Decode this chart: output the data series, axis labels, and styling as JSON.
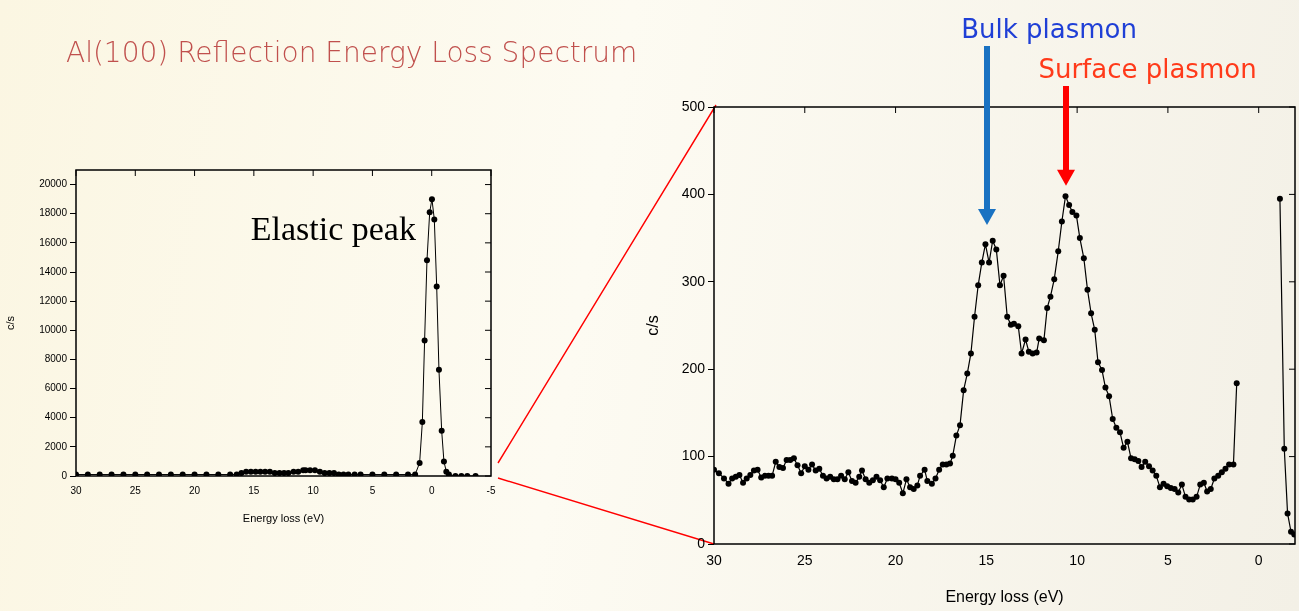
{
  "chart_data": [
    {
      "type": "line",
      "title": "Al(100) Reflection Energy Loss Spectrum",
      "xlabel": "Energy loss (eV)",
      "ylabel": "c/s",
      "x": [
        30,
        29,
        28,
        27,
        26,
        25,
        24,
        23,
        22,
        21,
        20,
        19,
        18,
        17,
        16.45,
        16.05,
        15.65,
        15.25,
        14.85,
        14.45,
        14.05,
        13.65,
        13.24,
        12.84,
        12.45,
        12.09,
        11.65,
        11.26,
        10.84,
        10.64,
        10.26,
        9.85,
        9.43,
        9.03,
        8.63,
        8.24,
        7.84,
        7.44,
        7.03,
        6.5,
        6,
        5,
        4,
        3,
        2,
        1.4,
        1.02,
        0.79,
        0.6,
        0.4,
        0.17,
        -0.02,
        -0.22,
        -0.42,
        -0.61,
        -0.84,
        -1.03,
        -1.23,
        -1.45,
        -2,
        -2.5,
        -3,
        -3.7
      ],
      "series": [
        {
          "color": "#000000",
          "values": [
            100,
            100,
            100,
            100,
            100,
            100,
            100,
            100,
            100,
            100,
            100,
            100,
            100,
            100,
            100,
            200,
            300,
            300,
            300,
            300,
            300,
            300,
            200,
            200,
            200,
            200,
            300,
            300,
            400,
            400,
            400,
            400,
            300,
            200,
            200,
            200,
            100,
            100,
            100,
            100,
            100,
            100,
            100,
            100,
            100,
            100,
            900,
            3700,
            9300,
            14800,
            18100,
            19000,
            17600,
            13000,
            7300,
            3100,
            1000,
            300,
            100,
            0,
            0,
            0,
            0
          ]
        }
      ],
      "xlim": [
        30,
        -5
      ],
      "xticks": [
        30,
        25,
        20,
        15,
        10,
        5,
        0,
        -5
      ],
      "ylim": [
        0,
        21000
      ],
      "yticks": [
        0,
        2000,
        4000,
        6000,
        8000,
        10000,
        12000,
        14000,
        16000,
        18000,
        20000
      ],
      "annotations": [
        "Elastic peak"
      ],
      "marker": "circle",
      "line_style": "solid",
      "grid": false,
      "legend": false
    },
    {
      "type": "line",
      "xlabel": "Energy loss (eV)",
      "ylabel": "c/s",
      "x": [
        30,
        29.73,
        29.45,
        29.2,
        29.0,
        28.8,
        28.6,
        28.4,
        28.2,
        28.0,
        27.8,
        27.6,
        27.4,
        27.2,
        27.0,
        26.8,
        26.6,
        26.4,
        26.2,
        26.0,
        25.8,
        25.6,
        25.4,
        25.2,
        25.0,
        24.8,
        24.6,
        24.4,
        24.2,
        24.0,
        23.8,
        23.6,
        23.4,
        23.2,
        23.0,
        22.8,
        22.6,
        22.4,
        22.2,
        22.0,
        21.85,
        21.65,
        21.45,
        21.25,
        21.05,
        20.85,
        20.65,
        20.45,
        20.2,
        20.0,
        19.8,
        19.6,
        19.4,
        19.2,
        19.0,
        18.8,
        18.65,
        18.4,
        18.25,
        18.0,
        17.8,
        17.6,
        17.4,
        17.2,
        17.0,
        16.85,
        16.65,
        16.45,
        16.25,
        16.05,
        15.85,
        15.65,
        15.45,
        15.25,
        15.05,
        14.85,
        14.65,
        14.45,
        14.25,
        14.05,
        13.85,
        13.65,
        13.48,
        13.24,
        13.06,
        12.84,
        12.66,
        12.45,
        12.23,
        12.09,
        11.83,
        11.65,
        11.47,
        11.26,
        11.04,
        10.84,
        10.64,
        10.44,
        10.26,
        10.04,
        9.85,
        9.63,
        9.43,
        9.23,
        9.03,
        8.85,
        8.63,
        8.44,
        8.24,
        8.04,
        7.84,
        7.64,
        7.44,
        7.23,
        7.03,
        6.83,
        6.63,
        6.45,
        6.25,
        6.04,
        5.84,
        5.64,
        5.44,
        5.24,
        5.04,
        4.84,
        4.63,
        4.43,
        4.23,
        4.03,
        3.83,
        3.63,
        3.42,
        3.22,
        3.02,
        2.84,
        2.64,
        2.44,
        2.23,
        2.03,
        1.83,
        1.63,
        1.39,
        1.21,
        0,
        -1.17,
        -1.41,
        -1.59,
        -1.78,
        -1.96
      ],
      "series": [
        {
          "color": "#000000",
          "values": [
            85,
            81,
            75,
            69,
            75,
            77,
            79,
            70,
            75,
            79,
            84,
            85,
            76,
            78,
            78,
            78,
            94,
            88,
            87,
            96,
            96,
            98,
            90,
            81,
            89,
            85,
            91,
            84,
            86,
            78,
            75,
            77,
            74,
            74,
            78,
            74,
            82,
            72,
            70,
            77,
            84,
            74,
            70,
            73,
            77,
            73,
            65,
            75,
            75,
            74,
            70,
            58,
            74,
            65,
            63,
            67,
            78,
            85,
            72,
            69,
            75,
            85,
            91,
            91,
            92,
            101,
            124,
            136,
            176,
            195,
            218,
            260,
            296,
            322,
            343,
            322,
            347,
            337,
            296,
            307,
            260,
            251,
            252,
            249,
            218,
            234,
            220,
            218,
            219,
            235,
            233,
            270,
            283,
            303,
            335,
            369,
            398,
            388,
            380,
            376,
            350,
            327,
            291,
            264,
            245,
            208,
            199,
            179,
            169,
            143,
            133,
            128,
            110,
            117,
            98,
            97,
            95,
            88,
            94,
            89,
            84,
            78,
            65,
            69,
            66,
            64,
            63,
            59,
            68,
            54,
            51,
            51,
            54,
            68,
            70,
            60,
            63,
            75,
            78,
            82,
            86,
            91,
            91,
            184,
            null,
            395,
            109,
            35,
            14,
            11
          ]
        }
      ],
      "xlim": [
        30,
        -2
      ],
      "xticks": [
        30,
        25,
        20,
        15,
        10,
        5,
        0
      ],
      "ylim": [
        0,
        500
      ],
      "yticks": [
        0,
        100,
        200,
        300,
        400,
        500
      ],
      "annotations": [
        "Bulk plasmon",
        "Surface plasmon"
      ],
      "marker": "circle",
      "line_style": "solid",
      "grid": false,
      "legend": false
    }
  ]
}
